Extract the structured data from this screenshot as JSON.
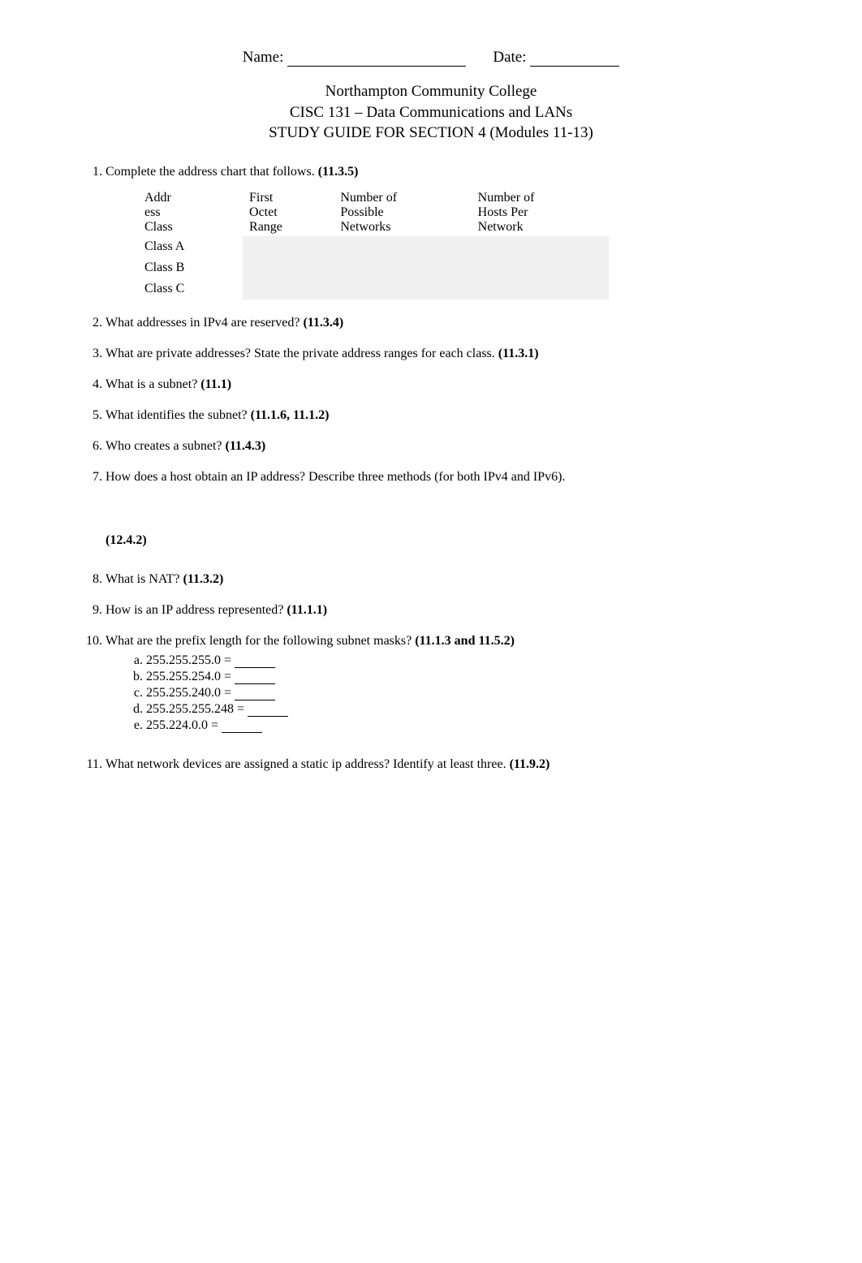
{
  "header": {
    "name_label": "Name:",
    "date_label": "Date:"
  },
  "title": {
    "line1": "Northampton Community College",
    "line2": "CISC 131 – Data Communications and LANs",
    "line3": "STUDY GUIDE FOR SECTION 4 (Modules 11-13)"
  },
  "table": {
    "headers": {
      "col1_a": "Addr",
      "col1_b": "ess",
      "col1_c": "Class",
      "col2_a": "First",
      "col2_b": "Octet",
      "col2_c": "Range",
      "col3_a": "Number of",
      "col3_b": "Possible",
      "col3_c": "Networks",
      "col4_a": "Number of",
      "col4_b": "Hosts Per",
      "col4_c": "Network"
    },
    "rows": {
      "r1": "Class A",
      "r2": "Class B",
      "r3": "Class C"
    }
  },
  "questions": {
    "q1_text": "Complete the address chart that follows. ",
    "q1_ref": "(11.3.5)",
    "q2_text": "What addresses in IPv4 are reserved? ",
    "q2_ref": "(11.3.4)",
    "q3_text": "What are private addresses? State the private address ranges for each class. ",
    "q3_ref": "(11.3.1)",
    "q4_text": "What is a subnet? ",
    "q4_ref": "(11.1)",
    "q5_text": "What identifies the subnet? ",
    "q5_ref": "(11.1.6, 11.1.2)",
    "q6_text": "Who creates a subnet? ",
    "q6_ref": "(11.4.3)",
    "q7_text": "How does a host obtain an IP address? Describe three methods (for both IPv4 and IPv6).",
    "standalone_ref": "(12.4.2)",
    "q8_text": "What is NAT? ",
    "q8_ref": "(11.3.2)",
    "q9_text": "How is an IP address represented? ",
    "q9_ref": "(11.1.1)",
    "q10_text": "What are the prefix length for the following subnet masks? ",
    "q10_ref": "(11.1.3 and 11.5.2)",
    "q10_items": {
      "a": "255.255.255.0 = ",
      "b": "255.255.254.0 = ",
      "c": "255.255.240.0 = ",
      "d": "255.255.255.248 = ",
      "e": "255.224.0.0 = "
    },
    "q11_text": "What network devices are assigned a static ip address? Identify at least three. ",
    "q11_ref": "(11.9.2)"
  },
  "colors": {
    "text": "#000000",
    "background": "#ffffff",
    "shaded_cell": "#f0f0f0"
  }
}
